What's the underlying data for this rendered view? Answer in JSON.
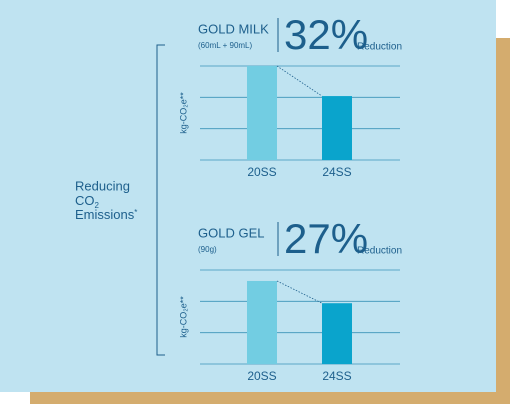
{
  "side_label": {
    "line1": "Reducing",
    "co": "CO",
    "sub": "2",
    "line3": "Emissions",
    "mark": "*"
  },
  "chart_data": [
    {
      "type": "bar",
      "title": "GOLD MILK",
      "subtitle": "(60mL + 90mL)",
      "headline": "32%",
      "headline_note": "Reduction",
      "y_label": "kg-CO₂e**",
      "categories": [
        "20SS",
        "24SS"
      ],
      "values": [
        3,
        2.04
      ],
      "colors": [
        "#72cde2",
        "#0aa4cc"
      ],
      "ylim": [
        0,
        3
      ],
      "yticks": [
        0,
        1,
        2,
        3
      ],
      "grid": true
    },
    {
      "type": "bar",
      "title": "GOLD GEL",
      "subtitle": "(90g)",
      "headline": "27%",
      "headline_note": "Reduction",
      "y_label": "kg-CO₂e**",
      "categories": [
        "20SS",
        "24SS"
      ],
      "values": [
        2.65,
        1.94
      ],
      "colors": [
        "#72cde2",
        "#0aa4cc"
      ],
      "ylim": [
        0,
        3
      ],
      "yticks": [
        0,
        1,
        2,
        3
      ],
      "grid": true
    }
  ]
}
